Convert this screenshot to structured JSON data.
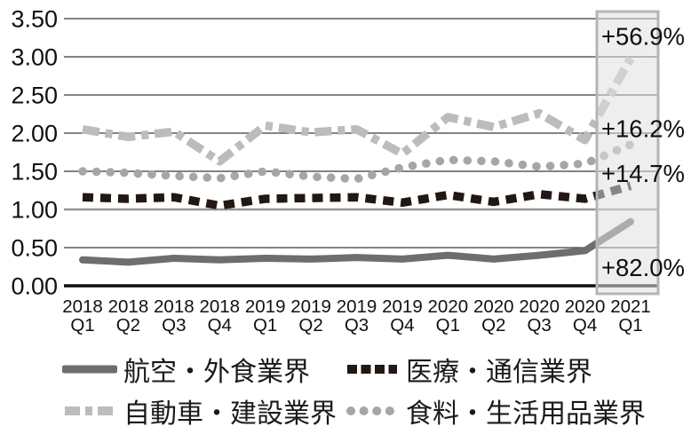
{
  "chart_data": {
    "type": "line",
    "title": "",
    "xlabel": "",
    "ylabel": "",
    "ylim": [
      0,
      3.5
    ],
    "ytick_step": 0.5,
    "grid": true,
    "legend_position": "bottom",
    "y_tick_labels": [
      "0.00",
      "0.50",
      "1.00",
      "1.50",
      "2.00",
      "2.50",
      "3.00",
      "3.50"
    ],
    "categories": [
      [
        "2018",
        "Q1"
      ],
      [
        "2018",
        "Q2"
      ],
      [
        "2018",
        "Q3"
      ],
      [
        "2018",
        "Q4"
      ],
      [
        "2019",
        "Q1"
      ],
      [
        "2019",
        "Q2"
      ],
      [
        "2019",
        "Q3"
      ],
      [
        "2019",
        "Q4"
      ],
      [
        "2020",
        "Q1"
      ],
      [
        "2020",
        "Q2"
      ],
      [
        "2020",
        "Q3"
      ],
      [
        "2020",
        "Q4"
      ],
      [
        "2021",
        "Q1"
      ]
    ],
    "series": [
      {
        "name": "航空・外食業界",
        "style": "solid",
        "color": "#6e6e6e",
        "values": [
          0.34,
          0.31,
          0.36,
          0.34,
          0.36,
          0.35,
          0.37,
          0.35,
          0.4,
          0.35,
          0.4,
          0.46,
          0.84
        ],
        "annotation": "+82.0%"
      },
      {
        "name": "医療・通信業界",
        "style": "dashed",
        "color": "#211713",
        "values": [
          1.16,
          1.14,
          1.16,
          1.05,
          1.14,
          1.15,
          1.16,
          1.09,
          1.19,
          1.1,
          1.2,
          1.14,
          1.31
        ],
        "annotation": "+14.7%"
      },
      {
        "name": "自動車・建設業界",
        "style": "dashdot",
        "color": "#bcbcbc",
        "values": [
          2.05,
          1.95,
          2.02,
          1.63,
          2.1,
          2.01,
          2.05,
          1.73,
          2.21,
          2.08,
          2.26,
          1.91,
          2.98
        ],
        "annotation": "+56.9%"
      },
      {
        "name": "食料・生活用品業界",
        "style": "dotted",
        "color": "#a6a6a6",
        "values": [
          1.5,
          1.48,
          1.44,
          1.41,
          1.5,
          1.43,
          1.4,
          1.55,
          1.65,
          1.63,
          1.56,
          1.6,
          1.85
        ],
        "annotation": "+16.2%"
      }
    ],
    "annotations": [
      {
        "text": "+56.9%",
        "y_value": 3.27
      },
      {
        "text": "+16.2%",
        "y_value": 2.06
      },
      {
        "text": "+14.7%",
        "y_value": 1.47
      },
      {
        "text": "+82.0%",
        "y_value": 0.24
      }
    ],
    "highlight_band": {
      "category": "2021 Q1"
    }
  }
}
